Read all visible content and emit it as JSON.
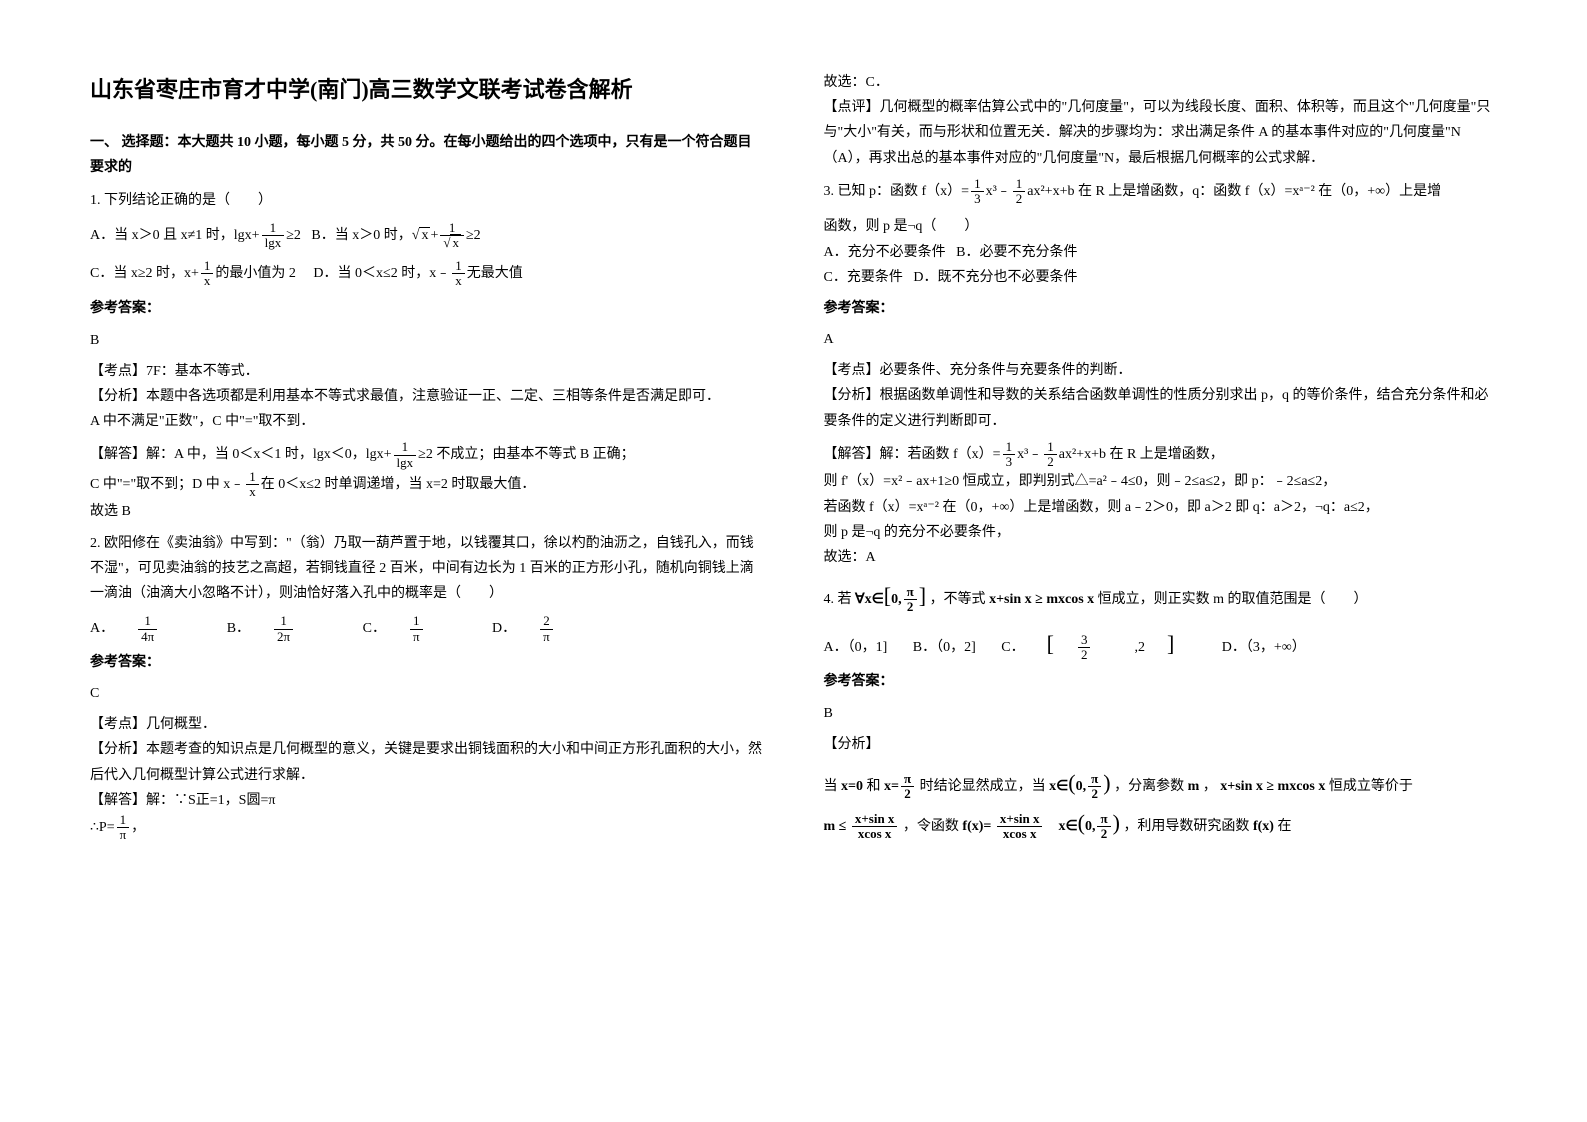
{
  "title": "山东省枣庄市育才中学(南门)高三数学文联考试卷含解析",
  "section1_head": "一、 选择题：本大题共 10 小题，每小题 5 分，共 50 分。在每小题给出的四个选项中，只有是一个符合题目要求的",
  "q1": {
    "stem": "1. 下列结论正确的是（　　）",
    "optA_pre": "A．当 x＞0 且 x≠1 时，lgx+",
    "optA_suf": "≥2",
    "optB_pre": "B．当 x＞0 时，",
    "optB_mid": "+",
    "optB_suf": "≥2",
    "optC_pre": "C．当 x≥2 时，x+",
    "optC_suf": "的最小值为 2",
    "optD_pre": "D．当 0＜x≤2 时，x﹣",
    "optD_suf": "无最大值",
    "ans_label": "参考答案：",
    "ans": "B",
    "kp": "【考点】7F：基本不等式．",
    "analysis": "【分析】本题中各选项都是利用基本不等式求最值，注意验证一正、二定、三相等条件是否满足即可．",
    "analysis2": "A 中不满足\"正数\"，C 中\"=\"取不到．",
    "solve_pre": "【解答】解：A 中，当 0＜x＜1 时，lgx＜0，lgx+",
    "solve_suf": "≥2 不成立；由基本不等式 B 正确；",
    "solve2_pre": "C 中\"=\"取不到；D 中 x﹣",
    "solve2_suf": "在 0＜x≤2 时单调递增，当 x=2 时取最大值．",
    "pick": "故选 B"
  },
  "q2": {
    "stem": "2. 欧阳修在《卖油翁》中写到：\"（翁）乃取一葫芦置于地，以钱覆其口，徐以杓酌油沥之，自钱孔入，而钱不湿\"，可见卖油翁的技艺之高超，若铜钱直径 2 百米，中间有边长为 1 百米的正方形小孔，随机向铜钱上滴一滴油（油滴大小忽略不计），则油恰好落入孔中的概率是（　　）",
    "optA": "A．",
    "optB": "B．",
    "optC": "C．",
    "optD": "D．",
    "fracA_n": "1",
    "fracA_d": "4π",
    "fracB_n": "1",
    "fracB_d": "2π",
    "fracC_n": "1",
    "fracC_d": "π",
    "fracD_n": "2",
    "fracD_d": "π",
    "ans_label": "参考答案：",
    "ans": "C",
    "kp": "【考点】几何概型．",
    "analysis": "【分析】本题考查的知识点是几何概型的意义，关键是要求出铜钱面积的大小和中间正方形孔面积的大小，然后代入几何概型计算公式进行求解．",
    "solve": "【解答】解：∵S正=1，S圆=π",
    "prob_pre": "∴P=",
    "prob_suf": "，",
    "pick": "故选：C．",
    "comment": "【点评】几何概型的概率估算公式中的\"几何度量\"，可以为线段长度、面积、体积等，而且这个\"几何度量\"只与\"大小\"有关，而与形状和位置无关．解决的步骤均为：求出满足条件 A 的基本事件对应的\"几何度量\"N（A），再求出总的基本事件对应的\"几何度量\"N，最后根据几何概率的公式求解．"
  },
  "q3": {
    "stem_pre": "3. 已知 p：函数 f（x）=",
    "stem_mid1": "x³﹣",
    "stem_mid2": "ax²+x+b 在 R 上是增函数，q：函数 f（x）=xᵃ⁻² 在（0，+∞）上是增",
    "stem_suf": "函数，则 p 是¬q（　　）",
    "optA": "A．充分不必要条件",
    "optB": "B．必要不充分条件",
    "optC": "C．充要条件",
    "optD": "D．既不充分也不必要条件",
    "ans_label": "参考答案：",
    "ans": "A",
    "kp": "【考点】必要条件、充分条件与充要条件的判断．",
    "analysis": "【分析】根据函数单调性和导数的关系结合函数单调性的性质分别求出 p，q 的等价条件，结合充分条件和必要条件的定义进行判断即可．",
    "solve_pre": "【解答】解：若函数 f（x）=",
    "solve_mid1": "x³﹣",
    "solve_mid2": "ax²+x+b 在 R 上是增函数，",
    "solve2": "则 f'（x）=x²﹣ax+1≥0 恒成立，即判别式△=a²﹣4≤0，则﹣2≤a≤2，即 p：﹣2≤a≤2，",
    "solve3": "若函数 f（x）=xᵃ⁻² 在（0，+∞）上是增函数，则 a﹣2＞0，即 a＞2 即 q：a＞2，¬q：a≤2，",
    "solve4": "则 p 是¬q 的充分不必要条件，",
    "pick": "故选：A"
  },
  "q4": {
    "stem_pre": "4. 若",
    "forall": "∀x∈",
    "interval1_l": "0,",
    "interval1_r_n": "π",
    "interval1_r_d": "2",
    "stem_mid": "，不等式",
    "ineq": "x+sin x ≥ mxcos x",
    "stem_suf": "恒成立，则正实数 m 的取值范围是（　　）",
    "optA": "A．（0，1]",
    "optB": "B．（0，2]",
    "optC": "C．",
    "optC_l_n": "3",
    "optC_l_d": "2",
    "optC_r": ",2",
    "optD": "D．（3，+∞）",
    "ans_label": "参考答案：",
    "ans": "B",
    "analysis_head": "【分析】",
    "s1_pre": "当",
    "s1_x0": "x=0",
    "s1_and": "和",
    "s1_x_n": "π",
    "s1_x_d": "2",
    "s1_xeq": "x=",
    "s1_mid": "时结论显然成立，当",
    "s1_xin": "x∈",
    "s1_int_l": "0,",
    "s1_int_r_n": "π",
    "s1_int_r_d": "2",
    "s1_suf": "，分离参数",
    "s1_m": "m",
    "s1_comma": "，",
    "s1_ineq2": "x+sin x ≥ mxcos x",
    "s1_tail": "恒成立等价于",
    "s2_lhs": "m ≤",
    "s2_frac_n": "x+sin x",
    "s2_frac_d": "xcos x",
    "s2_mid": "，令函数",
    "s2_fx": "f(x)=",
    "s2_xin": "x∈",
    "s2_int_l": "0,",
    "s2_int_r_n": "π",
    "s2_int_r_d": "2",
    "s2_suf": "，利用导数研究函数",
    "s2_fx2": "f(x)",
    "s2_tail": "在"
  }
}
